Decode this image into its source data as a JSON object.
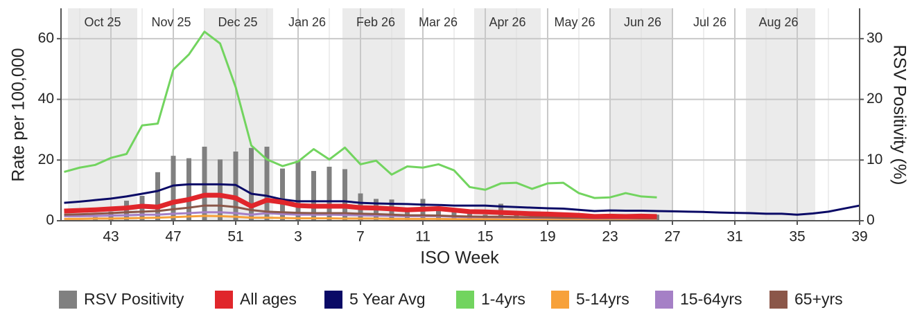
{
  "chart_data": {
    "type": "line",
    "xlabel": "ISO Week",
    "ylabel": "Rate per 100,000",
    "y2label": "RSV Positivity (%)",
    "months": [
      "Oct 25",
      "Nov 25",
      "Dec 25",
      "Jan 26",
      "Feb 26",
      "Mar 26",
      "Apr 26",
      "May 26",
      "Jun 26",
      "Jul 26",
      "Aug 26"
    ],
    "categories": [
      null,
      null,
      null,
      43,
      null,
      null,
      null,
      47,
      null,
      null,
      null,
      51,
      null,
      null,
      null,
      3,
      null,
      null,
      null,
      7,
      null,
      null,
      null,
      11,
      null,
      null,
      null,
      15,
      null,
      null,
      null,
      19,
      null,
      null,
      null,
      23,
      null,
      null,
      null,
      27,
      null,
      null,
      null,
      31,
      null,
      null,
      null,
      35,
      null,
      null,
      null,
      39
    ],
    "ylim": [
      0,
      70
    ],
    "yticks": [
      0,
      20,
      40,
      60
    ],
    "y2lim": [
      0,
      35
    ],
    "y2ticks": [
      0,
      10,
      20,
      30
    ],
    "grid": true,
    "series": [
      {
        "name": "RSV Positivity",
        "type": "bar",
        "axis": "y2",
        "color": "#808080",
        "values": [
          null,
          null,
          0.6,
          1.5,
          3.3,
          4.1,
          8,
          10.7,
          10.3,
          12.2,
          10.1,
          11.4,
          12,
          12.2,
          8.6,
          9.9,
          8.2,
          8.9,
          8.5,
          4.5,
          3.6,
          3.5,
          1.6,
          3.6,
          1.8,
          1.5,
          1.2,
          1,
          2.8,
          1.5,
          1.2,
          1,
          1.2,
          1,
          1,
          1,
          1,
          1,
          1,
          null,
          null,
          null,
          null,
          null,
          null,
          null,
          null,
          null,
          null,
          null,
          null,
          null
        ]
      },
      {
        "name": "All ages",
        "color": "#e0262b",
        "values": [
          3.2,
          3.4,
          3.6,
          3.9,
          4.2,
          4.8,
          4.5,
          6.1,
          7,
          8.4,
          8.4,
          7.5,
          4.8,
          6.8,
          6.1,
          5,
          4.8,
          4.8,
          4.8,
          4.3,
          4.2,
          3.9,
          3.6,
          3.8,
          4,
          3.5,
          3,
          2.9,
          2.7,
          2.5,
          2.3,
          2.2,
          2,
          1.8,
          1.4,
          1.5,
          1.4,
          1.5,
          1.4,
          null,
          null,
          null,
          null,
          null,
          null,
          null,
          null,
          null,
          null,
          null,
          null,
          null
        ]
      },
      {
        "name": "5 Year Avg",
        "color": "#0a0a66",
        "values": [
          5.9,
          6.3,
          6.8,
          7.3,
          8,
          8.9,
          9.8,
          11.6,
          12,
          12,
          12,
          11.8,
          8.9,
          8.2,
          7,
          6.4,
          6.4,
          6.4,
          6.4,
          5.9,
          5.7,
          5.6,
          5.5,
          5.3,
          5.2,
          5,
          5,
          5,
          4.7,
          4.5,
          4.3,
          4.1,
          4,
          3.6,
          3.2,
          3.4,
          3.3,
          3.3,
          3.2,
          3.1,
          3,
          2.9,
          2.7,
          2.6,
          2.5,
          2.3,
          2.3,
          2,
          2.4,
          3,
          4,
          5
        ]
      },
      {
        "name": "1-4yrs",
        "color": "#72d45f",
        "values": [
          16.1,
          17.5,
          18.4,
          20.7,
          22,
          31.4,
          32,
          49.8,
          54.8,
          62.3,
          58.4,
          44,
          24.8,
          20.2,
          18,
          19.5,
          23.6,
          20.2,
          24.1,
          18.6,
          19.8,
          15.2,
          17.9,
          17.5,
          18.6,
          16.6,
          11.1,
          10.2,
          12.3,
          12.5,
          10.5,
          12.3,
          12.5,
          9.1,
          7.5,
          7.7,
          9.1,
          8,
          7.7,
          null,
          null,
          null,
          null,
          null,
          null,
          null,
          null,
          null,
          null,
          null,
          null,
          null
        ]
      },
      {
        "name": "5-14yrs",
        "color": "#f7a13a",
        "values": [
          0.6,
          0.6,
          0.7,
          0.7,
          0.8,
          0.9,
          1,
          1.2,
          1.4,
          1.6,
          1.5,
          1.3,
          1,
          1,
          0.9,
          0.8,
          0.8,
          0.8,
          0.7,
          0.7,
          0.7,
          0.6,
          0.6,
          0.6,
          0.6,
          0.5,
          0.5,
          0.5,
          0.5,
          0.4,
          0.4,
          0.4,
          0.4,
          0.4,
          0.3,
          0.3,
          0.3,
          0.3,
          0.3,
          null,
          null,
          null,
          null,
          null,
          null,
          null,
          null,
          null,
          null,
          null,
          null,
          null
        ]
      },
      {
        "name": "15-64yrs",
        "color": "#a580c6",
        "values": [
          1.5,
          1.5,
          1.6,
          1.7,
          1.8,
          2,
          2,
          2.3,
          2.5,
          2.8,
          2.8,
          2.5,
          2,
          2.5,
          2.2,
          2,
          2,
          2,
          1.9,
          1.8,
          1.7,
          1.6,
          1.5,
          1.5,
          1.5,
          1.3,
          1.2,
          1.2,
          1.1,
          1.1,
          1,
          1,
          0.9,
          0.9,
          0.8,
          0.8,
          0.8,
          0.7,
          0.7,
          null,
          null,
          null,
          null,
          null,
          null,
          null,
          null,
          null,
          null,
          null,
          null,
          null
        ]
      },
      {
        "name": "65+yrs",
        "color": "#8b5749",
        "values": [
          2,
          2.1,
          2.3,
          2.5,
          2.8,
          3,
          3.2,
          3.8,
          4.3,
          5,
          5,
          4.5,
          3.5,
          3,
          2.8,
          2.6,
          2.5,
          2.5,
          2.5,
          2.3,
          2.2,
          2,
          1.8,
          1.8,
          1.7,
          1.5,
          1.4,
          1.3,
          1.3,
          1.2,
          1.2,
          1.1,
          1,
          1,
          0.9,
          0.9,
          0.9,
          0.8,
          0.8,
          null,
          null,
          null,
          null,
          null,
          null,
          null,
          null,
          null,
          null,
          null,
          null,
          null
        ]
      }
    ]
  }
}
